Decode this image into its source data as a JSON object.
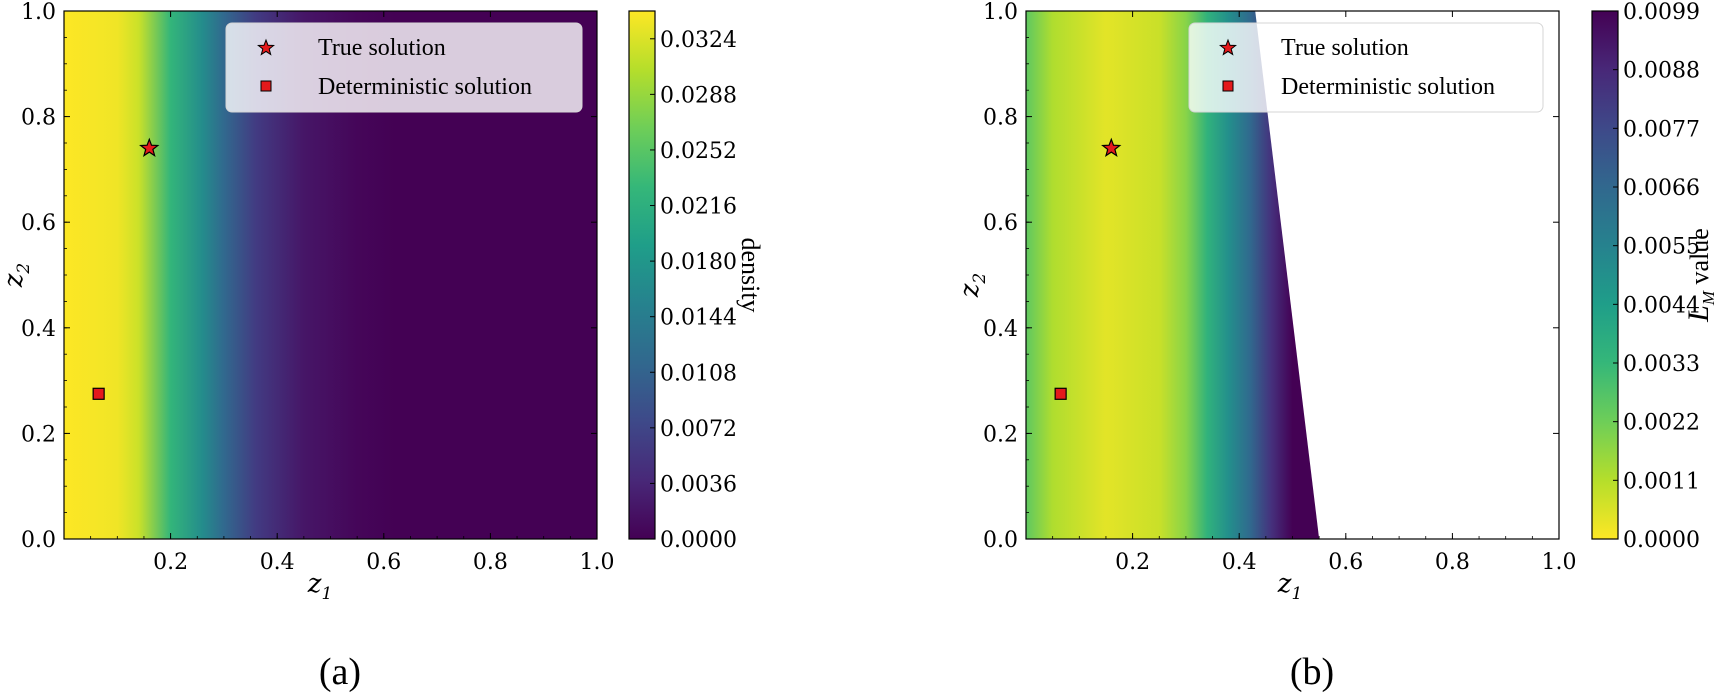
{
  "chart_data": [
    {
      "type": "heatmap",
      "panel_label": "(a)",
      "xlabel_base": "z",
      "xlabel_sub": "1",
      "ylabel_base": "z",
      "ylabel_sub": "2",
      "xlim": [
        0.0,
        1.0
      ],
      "ylim": [
        0.0,
        1.0
      ],
      "xticks": [
        "0.2",
        "0.4",
        "0.6",
        "0.8",
        "1.0"
      ],
      "yticks": [
        "0.0",
        "0.2",
        "0.4",
        "0.6",
        "0.8",
        "1.0"
      ],
      "colormap": "viridis",
      "colorbar": {
        "label": "density",
        "range": [
          0.0,
          0.0342
        ],
        "ticks": [
          "0.0000",
          "0.0036",
          "0.0072",
          "0.0108",
          "0.0144",
          "0.0180",
          "0.0216",
          "0.0252",
          "0.0288",
          "0.0324"
        ],
        "reversed": false
      },
      "density_profile_along_z1": [
        {
          "z1": 0.0,
          "value": 0.0342
        },
        {
          "z1": 0.1,
          "value": 0.0335
        },
        {
          "z1": 0.14,
          "value": 0.0315
        },
        {
          "z1": 0.2,
          "value": 0.0225
        },
        {
          "z1": 0.26,
          "value": 0.0165
        },
        {
          "z1": 0.3,
          "value": 0.0115
        },
        {
          "z1": 0.36,
          "value": 0.006
        },
        {
          "z1": 0.45,
          "value": 0.002
        },
        {
          "z1": 0.55,
          "value": 0.0005
        },
        {
          "z1": 0.62,
          "value": 0.0
        },
        {
          "z1": 1.0,
          "value": 0.0
        }
      ],
      "legend": {
        "placement": "top-right",
        "entries": [
          {
            "marker": "star",
            "label": "True solution"
          },
          {
            "marker": "square",
            "label": "Deterministic solution"
          }
        ]
      },
      "points": [
        {
          "name": "True solution",
          "marker": "star",
          "z1": 0.16,
          "z2": 0.74,
          "color": "#e41a1c"
        },
        {
          "name": "Deterministic solution",
          "marker": "square",
          "z1": 0.065,
          "z2": 0.275,
          "color": "#e41a1c"
        }
      ]
    },
    {
      "type": "heatmap",
      "panel_label": "(b)",
      "xlabel_base": "z",
      "xlabel_sub": "1",
      "ylabel_base": "z",
      "ylabel_sub": "2",
      "xlim": [
        0.0,
        1.0
      ],
      "ylim": [
        0.0,
        1.0
      ],
      "xticks": [
        "0.2",
        "0.4",
        "0.6",
        "0.8",
        "1.0"
      ],
      "yticks": [
        "0.0",
        "0.2",
        "0.4",
        "0.6",
        "0.8",
        "1.0"
      ],
      "colormap": "viridis_r",
      "colorbar": {
        "label_prefix": "L",
        "label_sub": "M",
        "label_suffix": " value",
        "range": [
          0.0,
          0.0099
        ],
        "ticks": [
          "0.0000",
          "0.0011",
          "0.0022",
          "0.0033",
          "0.0044",
          "0.0055",
          "0.0066",
          "0.0077",
          "0.0088",
          "0.0099"
        ],
        "reversed": true
      },
      "valid_region_boundary": [
        {
          "z2": 1.0,
          "z1": 0.43
        },
        {
          "z2": 0.0,
          "z1": 0.55
        }
      ],
      "value_profile_along_z1": [
        {
          "z1": 0.0,
          "value": 0.0025
        },
        {
          "z1": 0.05,
          "value": 0.0012
        },
        {
          "z1": 0.15,
          "value": 0.0004
        },
        {
          "z1": 0.25,
          "value": 0.0008
        },
        {
          "z1": 0.3,
          "value": 0.0018
        },
        {
          "z1": 0.34,
          "value": 0.0035
        },
        {
          "z1": 0.38,
          "value": 0.005
        },
        {
          "z1": 0.42,
          "value": 0.0065
        },
        {
          "z1": 0.46,
          "value": 0.0085
        },
        {
          "z1": 0.5,
          "value": 0.0099
        }
      ],
      "legend": {
        "placement": "top-right",
        "entries": [
          {
            "marker": "star",
            "label": "True solution"
          },
          {
            "marker": "square",
            "label": "Deterministic solution"
          }
        ]
      },
      "points": [
        {
          "name": "True solution",
          "marker": "star",
          "z1": 0.16,
          "z2": 0.74,
          "color": "#e41a1c"
        },
        {
          "name": "Deterministic solution",
          "marker": "square",
          "z1": 0.065,
          "z2": 0.275,
          "color": "#e41a1c"
        }
      ]
    }
  ]
}
